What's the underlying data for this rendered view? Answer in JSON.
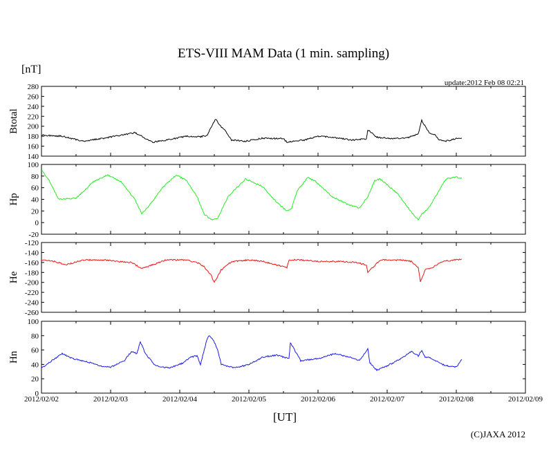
{
  "title": "ETS-VIII MAM Data (1 min. sampling)",
  "unit_label": "[nT]",
  "update_label": "update:2012 Feb 08 02:21",
  "xaxis_label": "[UT]",
  "copyright": "(C)JAXA 2012",
  "chart_data": [
    {
      "type": "line",
      "name": "Btotal",
      "ylabel": "Btotal",
      "color": "#000000",
      "ylim": [
        140,
        280
      ],
      "yticks": [
        140,
        160,
        180,
        200,
        220,
        240,
        260,
        280
      ],
      "xlim": [
        0,
        7
      ],
      "x_days": [
        0,
        0.3,
        0.6,
        0.9,
        1.2,
        1.35,
        1.45,
        1.5,
        1.6,
        1.8,
        2.1,
        2.3,
        2.4,
        2.48,
        2.52,
        2.58,
        2.65,
        2.75,
        2.95,
        3.2,
        3.5,
        3.55,
        3.62,
        3.8,
        4.0,
        4.2,
        4.5,
        4.7,
        4.72,
        4.85,
        5.1,
        5.3,
        5.45,
        5.5,
        5.6,
        5.7,
        5.75,
        5.85,
        6.0,
        6.08
      ],
      "y": [
        182,
        180,
        170,
        176,
        183,
        187,
        180,
        176,
        168,
        172,
        180,
        179,
        182,
        205,
        215,
        202,
        192,
        172,
        170,
        176,
        175,
        168,
        170,
        172,
        180,
        178,
        172,
        175,
        193,
        178,
        175,
        177,
        185,
        212,
        188,
        182,
        172,
        170,
        175,
        176
      ]
    },
    {
      "type": "line",
      "name": "Hp",
      "ylabel": "Hp",
      "color": "#22ee22",
      "ylim": [
        -20,
        100
      ],
      "yticks": [
        -20,
        0,
        20,
        40,
        60,
        80,
        100
      ],
      "xlim": [
        0,
        7
      ],
      "x_days": [
        0,
        0.1,
        0.25,
        0.5,
        0.75,
        0.95,
        1.15,
        1.35,
        1.45,
        1.55,
        1.75,
        1.95,
        2.1,
        2.25,
        2.35,
        2.45,
        2.55,
        2.7,
        2.95,
        3.2,
        3.4,
        3.55,
        3.62,
        3.7,
        3.85,
        3.95,
        4.2,
        4.45,
        4.6,
        4.72,
        4.82,
        4.9,
        5.15,
        5.35,
        5.45,
        5.5,
        5.6,
        5.7,
        5.85,
        6.0,
        6.08
      ],
      "y": [
        90,
        75,
        40,
        42,
        70,
        82,
        70,
        40,
        15,
        28,
        60,
        82,
        72,
        45,
        15,
        5,
        8,
        45,
        75,
        62,
        35,
        20,
        25,
        55,
        77,
        72,
        45,
        30,
        25,
        45,
        72,
        75,
        50,
        18,
        5,
        15,
        25,
        45,
        75,
        78,
        76
      ]
    },
    {
      "type": "line",
      "name": "He",
      "ylabel": "He",
      "color": "#ee1111",
      "ylim": [
        -260,
        -120
      ],
      "yticks": [
        -120,
        -140,
        -160,
        -180,
        -200,
        -220,
        -240,
        -260
      ],
      "xlim": [
        0,
        7
      ],
      "x_days": [
        0,
        0.2,
        0.35,
        0.6,
        0.9,
        1.1,
        1.3,
        1.45,
        1.6,
        1.8,
        2.1,
        2.25,
        2.35,
        2.45,
        2.5,
        2.6,
        2.75,
        3.0,
        3.2,
        3.4,
        3.55,
        3.58,
        3.75,
        4.0,
        4.3,
        4.55,
        4.7,
        4.72,
        4.9,
        5.2,
        5.35,
        5.45,
        5.48,
        5.55,
        5.65,
        5.8,
        6.0,
        6.08
      ],
      "y": [
        -155,
        -158,
        -165,
        -155,
        -155,
        -158,
        -160,
        -172,
        -165,
        -155,
        -155,
        -160,
        -168,
        -185,
        -200,
        -175,
        -158,
        -155,
        -158,
        -165,
        -170,
        -155,
        -155,
        -158,
        -158,
        -160,
        -165,
        -180,
        -155,
        -155,
        -158,
        -170,
        -198,
        -175,
        -170,
        -158,
        -155,
        -153
      ]
    },
    {
      "type": "line",
      "name": "Hn",
      "ylabel": "Hn",
      "color": "#1a1ae6",
      "ylim": [
        0,
        100
      ],
      "yticks": [
        0,
        20,
        40,
        60,
        80,
        100
      ],
      "xlim": [
        0,
        7
      ],
      "x_days": [
        0,
        0.15,
        0.3,
        0.45,
        0.65,
        0.85,
        1.0,
        1.2,
        1.3,
        1.38,
        1.43,
        1.5,
        1.65,
        1.85,
        2.05,
        2.15,
        2.25,
        2.3,
        2.38,
        2.42,
        2.48,
        2.55,
        2.6,
        2.8,
        3.0,
        3.2,
        3.4,
        3.58,
        3.6,
        3.75,
        4.0,
        4.25,
        4.45,
        4.6,
        4.72,
        4.75,
        4.85,
        5.0,
        5.2,
        5.35,
        5.45,
        5.5,
        5.55,
        5.6,
        5.7,
        5.85,
        6.0,
        6.08
      ],
      "y": [
        35,
        45,
        55,
        48,
        44,
        38,
        36,
        45,
        58,
        55,
        72,
        55,
        38,
        35,
        42,
        50,
        52,
        40,
        70,
        80,
        75,
        60,
        40,
        35,
        40,
        50,
        53,
        48,
        70,
        45,
        48,
        55,
        50,
        45,
        62,
        42,
        32,
        38,
        48,
        58,
        52,
        60,
        50,
        50,
        45,
        38,
        36,
        47
      ]
    }
  ],
  "x_ticks": [
    "2012/02/02",
    "2012/02/03",
    "2012/02/04",
    "2012/02/05",
    "2012/02/06",
    "2012/02/07",
    "2012/02/08",
    "2012/02/09"
  ]
}
